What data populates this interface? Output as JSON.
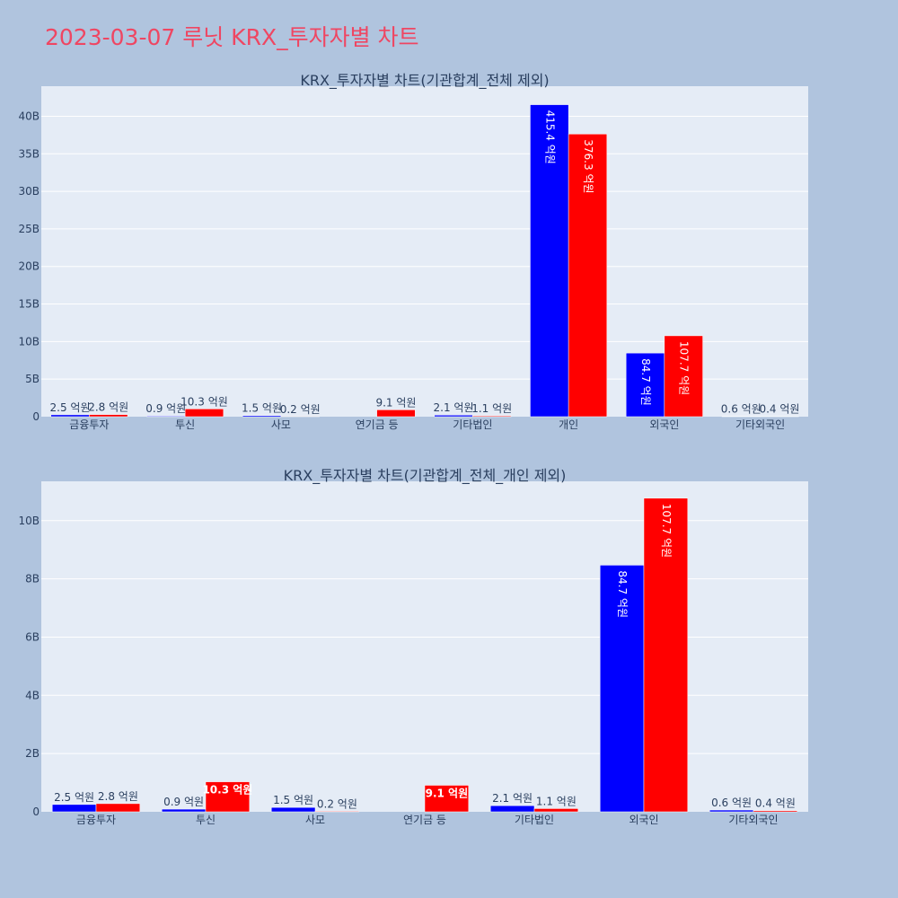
{
  "page": {
    "title": "2023-03-07 루닛 KRX_투자자별 차트"
  },
  "colors": {
    "background": "#b0c4de",
    "plot_bg": "#e5ecf6",
    "title": "#ef4662",
    "series_buy": "#0000ff",
    "series_sell": "#ff0000"
  },
  "chart_data": [
    {
      "type": "bar",
      "title": "KRX_투자자별 차트(기관합계_전체 제외)",
      "categories": [
        "금융투자",
        "투신",
        "사모",
        "연기금 등",
        "기타법인",
        "개인",
        "외국인",
        "기타외국인"
      ],
      "series": [
        {
          "color": "#0000ff",
          "values": [
            0.25,
            0.09,
            0.15,
            0,
            0.21,
            41.54,
            8.47,
            0.06
          ],
          "labels": [
            "2.5 억원",
            "0.9 억원",
            "1.5 억원",
            "",
            "2.1 억원",
            "415.4 억원",
            "84.7 억원",
            "0.6 억원"
          ]
        },
        {
          "color": "#ff0000",
          "values": [
            0.28,
            1.03,
            0.02,
            0.91,
            0.11,
            37.63,
            10.77,
            0.04
          ],
          "labels": [
            "2.8 억원",
            "10.3 억원",
            "0.2 억원",
            "9.1 억원",
            "1.1 억원",
            "376.3 억원",
            "107.7 억원",
            "0.4 억원"
          ]
        }
      ],
      "ylim": [
        0,
        44
      ],
      "yticks": [
        0,
        5,
        10,
        15,
        20,
        25,
        30,
        35,
        40
      ],
      "ytick_labels": [
        "0",
        "5B",
        "10B",
        "15B",
        "20B",
        "25B",
        "30B",
        "35B",
        "40B"
      ],
      "grid": true
    },
    {
      "type": "bar",
      "title": "KRX_투자자별 차트(기관합계_전체_개인 제외)",
      "categories": [
        "금융투자",
        "투신",
        "사모",
        "연기금 등",
        "기타법인",
        "외국인",
        "기타외국인"
      ],
      "series": [
        {
          "color": "#0000ff",
          "values": [
            0.25,
            0.09,
            0.15,
            0,
            0.21,
            8.47,
            0.06
          ],
          "labels": [
            "2.5 억원",
            "0.9 억원",
            "1.5 억원",
            "",
            "2.1 억원",
            "84.7 억원",
            "0.6 억원"
          ]
        },
        {
          "color": "#ff0000",
          "values": [
            0.28,
            1.03,
            0.02,
            0.91,
            0.11,
            10.77,
            0.04
          ],
          "labels": [
            "2.8 억원",
            "10.3 억원",
            "0.2 억원",
            "9.1 억원",
            "1.1 억원",
            "107.7 억원",
            "0.4 억원"
          ]
        }
      ],
      "ylim": [
        0,
        11.35
      ],
      "yticks": [
        0,
        2,
        4,
        6,
        8,
        10
      ],
      "ytick_labels": [
        "0",
        "2B",
        "4B",
        "6B",
        "8B",
        "10B"
      ],
      "grid": true
    }
  ]
}
